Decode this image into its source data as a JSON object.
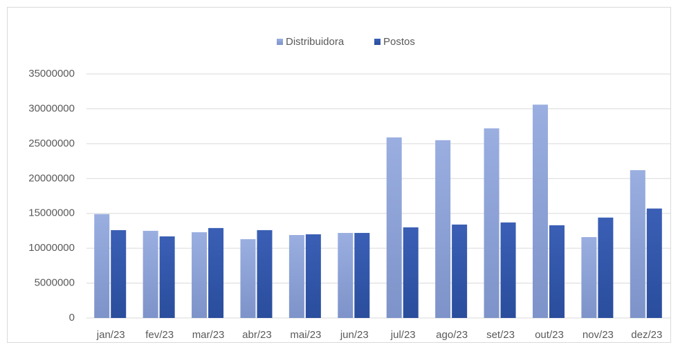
{
  "chart_data": {
    "type": "bar",
    "categories": [
      "jan/23",
      "fev/23",
      "mar/23",
      "abr/23",
      "mai/23",
      "jun/23",
      "jul/23",
      "ago/23",
      "set/23",
      "out/23",
      "nov/23",
      "dez/23"
    ],
    "series": [
      {
        "name": "Distribuidora",
        "color": "#8fa3d8",
        "values": [
          14900000,
          12500000,
          12300000,
          11300000,
          11900000,
          12200000,
          25900000,
          25500000,
          27200000,
          30600000,
          11600000,
          21200000
        ]
      },
      {
        "name": "Postos",
        "color": "#3457a8",
        "values": [
          12600000,
          11700000,
          12900000,
          12600000,
          12000000,
          12200000,
          13000000,
          13400000,
          13700000,
          13300000,
          14400000,
          15700000
        ]
      }
    ],
    "ylim": [
      0,
      35000000
    ],
    "yticks": [
      0,
      5000000,
      10000000,
      15000000,
      20000000,
      25000000,
      30000000,
      35000000
    ],
    "grid": true,
    "legend": "top"
  }
}
